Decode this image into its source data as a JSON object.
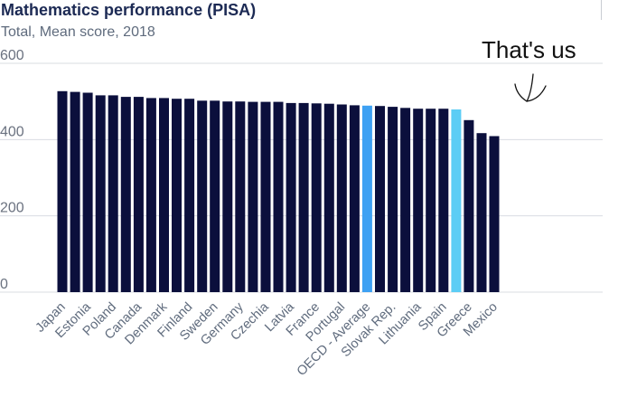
{
  "header": {
    "title": "Mathematics performance (PISA)",
    "subtitle": "Total, Mean score, 2018"
  },
  "annotation": {
    "text": "That's us"
  },
  "colors": {
    "bar": "#0b0f3c",
    "highlight_average": "#3ea1f3",
    "highlight_us": "#5ccdf5",
    "grid": "#d9dce2"
  },
  "chart_data": {
    "type": "bar",
    "title": "Mathematics performance (PISA)",
    "subtitle": "Total, Mean score, 2018",
    "xlabel": "",
    "ylabel": "",
    "ylim": [
      0,
      600
    ],
    "yticks": [
      0,
      200,
      400,
      600
    ],
    "grid": true,
    "categories": [
      "Japan",
      "",
      "Estonia",
      "",
      "Poland",
      "",
      "Canada",
      "",
      "Denmark",
      "",
      "Finland",
      "",
      "Sweden",
      "",
      "Germany",
      "",
      "Czechia",
      "",
      "Latvia",
      "",
      "France",
      "",
      "Portugal",
      "",
      "OECD - Average",
      "",
      "Slovak Rep.",
      "",
      "Lithuania",
      "",
      "Spain",
      "",
      "Greece",
      "",
      "Mexico"
    ],
    "values": [
      527,
      525,
      523,
      516,
      516,
      512,
      512,
      509,
      509,
      507,
      507,
      502,
      502,
      500,
      500,
      499,
      499,
      499,
      496,
      496,
      495,
      494,
      492,
      490,
      489,
      488,
      486,
      483,
      481,
      481,
      481,
      479,
      451,
      417,
      409
    ],
    "highlights": {
      "24": "average",
      "31": "us"
    }
  }
}
